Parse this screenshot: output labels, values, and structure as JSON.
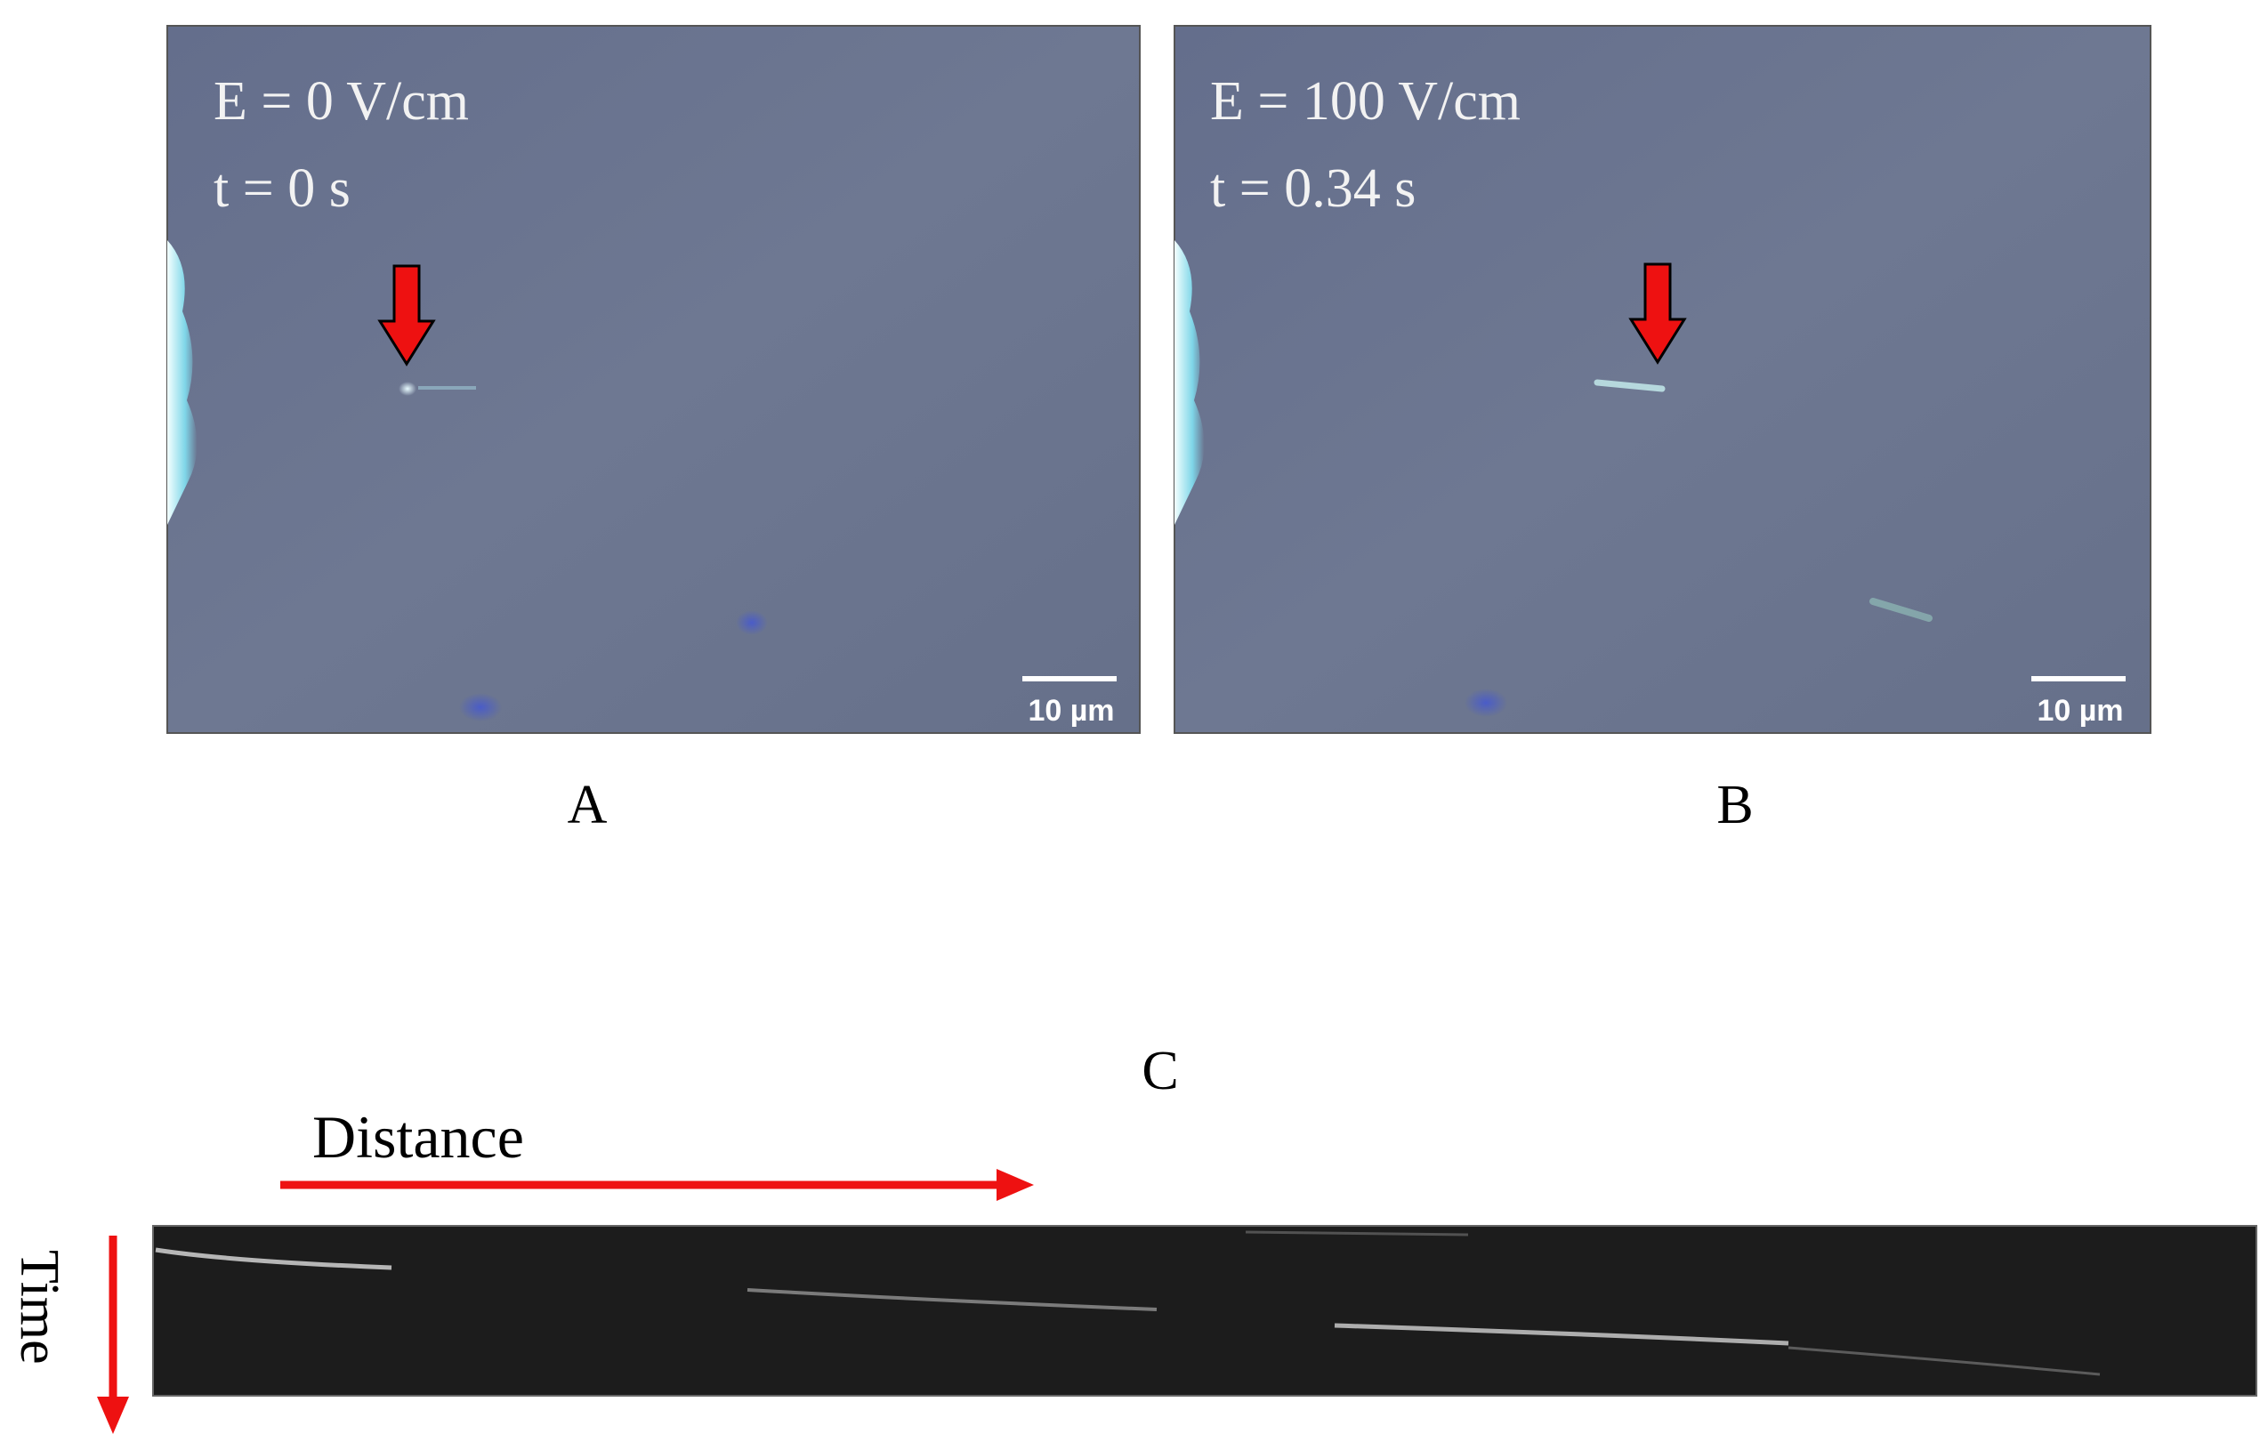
{
  "panels": [
    {
      "label": "A",
      "field": "E = 0 V/cm",
      "time": "t = 0 s",
      "scale_bar": "10 µm"
    },
    {
      "label": "B",
      "field": "E = 100 V/cm",
      "time": "t = 0.34 s",
      "scale_bar": "10 µm"
    }
  ],
  "kymograph": {
    "label": "C",
    "x_axis": "Distance",
    "y_axis": "Time"
  }
}
